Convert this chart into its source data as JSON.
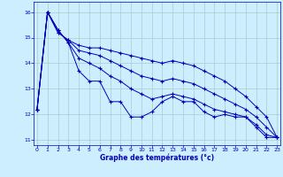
{
  "xlabel": "Graphe des températures (°c)",
  "background_color": "#cceeff",
  "grid_color": "#aacccc",
  "line_color": "#0000bb",
  "x_values": [
    0,
    1,
    2,
    3,
    4,
    5,
    6,
    7,
    8,
    9,
    10,
    11,
    12,
    13,
    14,
    15,
    16,
    17,
    18,
    19,
    20,
    21,
    22,
    23
  ],
  "line1": [
    12.2,
    16.0,
    15.3,
    14.8,
    13.7,
    13.3,
    13.3,
    12.5,
    12.5,
    11.9,
    11.9,
    12.1,
    12.5,
    12.7,
    12.5,
    12.5,
    12.1,
    11.9,
    12.0,
    11.9,
    11.9,
    11.5,
    11.1,
    11.1
  ],
  "line2": [
    12.2,
    16.0,
    15.3,
    14.8,
    14.2,
    14.0,
    13.8,
    13.5,
    13.3,
    13.0,
    12.8,
    12.6,
    12.7,
    12.8,
    12.7,
    12.6,
    12.4,
    12.2,
    12.1,
    12.0,
    11.9,
    11.6,
    11.2,
    11.1
  ],
  "line3": [
    12.2,
    16.0,
    15.2,
    14.9,
    14.5,
    14.4,
    14.3,
    14.1,
    13.9,
    13.7,
    13.5,
    13.4,
    13.3,
    13.4,
    13.3,
    13.2,
    13.0,
    12.8,
    12.6,
    12.4,
    12.2,
    11.9,
    11.5,
    11.1
  ],
  "line4": [
    12.2,
    16.0,
    15.2,
    14.9,
    14.7,
    14.6,
    14.6,
    14.5,
    14.4,
    14.3,
    14.2,
    14.1,
    14.0,
    14.1,
    14.0,
    13.9,
    13.7,
    13.5,
    13.3,
    13.0,
    12.7,
    12.3,
    11.9,
    11.1
  ],
  "ylim": [
    10.8,
    16.4
  ],
  "xlim": [
    -0.3,
    23.3
  ],
  "yticks": [
    11,
    12,
    13,
    14,
    15,
    16
  ],
  "xticks": [
    0,
    1,
    2,
    3,
    4,
    5,
    6,
    7,
    8,
    9,
    10,
    11,
    12,
    13,
    14,
    15,
    16,
    17,
    18,
    19,
    20,
    21,
    22,
    23
  ]
}
